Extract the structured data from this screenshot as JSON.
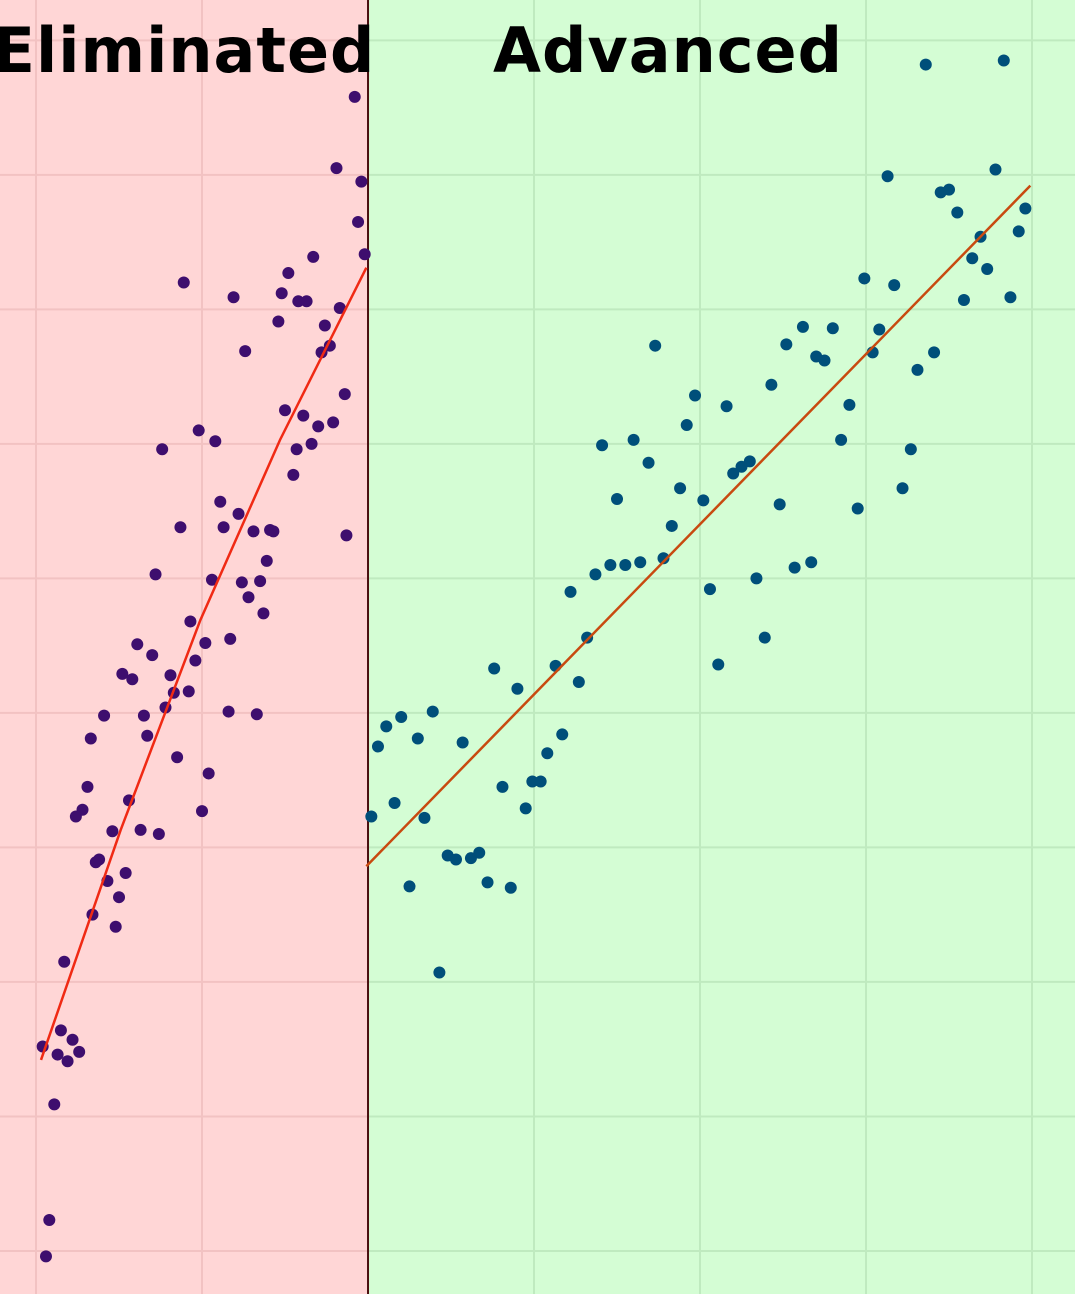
{
  "chart_data": {
    "type": "scatter",
    "xlim": [
      -0.217,
      6.259
    ],
    "ylim": [
      -0.32,
      9.3
    ],
    "xticks": [
      0,
      1,
      2,
      3,
      4,
      5,
      6
    ],
    "yticks": [
      0,
      1,
      2,
      3,
      4,
      5,
      6,
      7,
      8,
      9
    ],
    "grid": true,
    "split_x": 2,
    "divider_color": "#4a0f0f",
    "regions": [
      {
        "name": "Eliminated",
        "color": "#ffd6d6",
        "grid_color": "#f2c2c2",
        "point_color": "#3e0e6e",
        "x": [
          1.92,
          1.81,
          1.96,
          1.94,
          1.98,
          0.89,
          1.52,
          1.67,
          1.19,
          1.48,
          1.58,
          1.63,
          1.46,
          1.83,
          1.74,
          1.26,
          1.77,
          1.72,
          1.86,
          1.5,
          1.61,
          1.79,
          1.7,
          0.98,
          1.08,
          0.76,
          1.66,
          1.57,
          1.55,
          1.11,
          1.22,
          1.13,
          0.87,
          1.31,
          1.41,
          1.43,
          1.87,
          1.39,
          0.72,
          1.06,
          1.24,
          1.35,
          1.28,
          1.37,
          0.93,
          0.61,
          0.7,
          1.02,
          1.17,
          0.52,
          0.58,
          0.81,
          0.96,
          0.83,
          0.92,
          0.41,
          0.65,
          0.78,
          1.16,
          1.33,
          0.33,
          0.67,
          0.85,
          1.04,
          0.31,
          0.56,
          0.28,
          0.24,
          1.0,
          0.46,
          0.63,
          0.74,
          0.36,
          0.38,
          0.54,
          0.43,
          0.5,
          0.34,
          0.48,
          0.17,
          0.04,
          0.15,
          0.22,
          0.13,
          0.19,
          0.26,
          0.11,
          0.08,
          0.06
        ],
        "y": [
          8.58,
          8.05,
          7.95,
          7.65,
          7.41,
          7.2,
          7.27,
          7.39,
          7.09,
          7.12,
          7.06,
          7.06,
          6.91,
          7.01,
          6.88,
          6.69,
          6.73,
          6.68,
          6.37,
          6.25,
          6.21,
          6.16,
          6.13,
          6.1,
          6.02,
          5.96,
          6.0,
          5.96,
          5.77,
          5.57,
          5.48,
          5.38,
          5.38,
          5.35,
          5.36,
          5.35,
          5.32,
          5.13,
          5.03,
          4.99,
          4.97,
          4.98,
          4.86,
          4.74,
          4.68,
          4.51,
          4.43,
          4.52,
          4.55,
          4.29,
          4.25,
          4.28,
          4.39,
          4.15,
          4.16,
          3.98,
          3.98,
          4.04,
          4.01,
          3.99,
          3.81,
          3.83,
          3.67,
          3.55,
          3.45,
          3.35,
          3.28,
          3.23,
          3.27,
          3.12,
          3.13,
          3.1,
          2.89,
          2.91,
          2.81,
          2.75,
          2.63,
          2.5,
          2.41,
          2.15,
          1.52,
          1.64,
          1.57,
          1.46,
          1.41,
          1.48,
          1.09,
          0.23,
          -0.04
        ],
        "fit": {
          "color": "#f02a14",
          "x": [
            0.03,
            0.51,
            0.99,
            1.47,
            1.99
          ],
          "y": [
            1.42,
            3.13,
            4.69,
            6.03,
            7.31
          ]
        }
      },
      {
        "name": "Advanced",
        "color": "#d4fdd4",
        "grid_color": "#bfeabf",
        "point_color": "#004f7a",
        "x": [
          5.36,
          5.83,
          5.13,
          5.78,
          5.45,
          5.5,
          5.55,
          5.96,
          5.92,
          5.69,
          5.64,
          5.73,
          5.59,
          5.87,
          4.99,
          5.17,
          4.62,
          4.8,
          5.08,
          4.52,
          4.7,
          4.75,
          3.73,
          5.04,
          5.41,
          5.31,
          4.43,
          3.97,
          4.16,
          4.9,
          3.92,
          3.6,
          3.41,
          4.85,
          5.27,
          3.69,
          4.3,
          4.25,
          4.2,
          3.88,
          5.22,
          3.5,
          4.02,
          4.48,
          4.95,
          3.83,
          3.78,
          3.37,
          3.46,
          3.55,
          3.64,
          4.67,
          4.57,
          4.34,
          3.22,
          4.06,
          4.39,
          3.32,
          3.13,
          4.11,
          2.76,
          3.27,
          2.9,
          2.39,
          2.2,
          2.11,
          2.3,
          2.06,
          3.17,
          2.57,
          3.08,
          2.99,
          3.04,
          2.81,
          2.16,
          2.95,
          2.02,
          2.34,
          2.48,
          2.53,
          2.62,
          2.67,
          2.72,
          2.86,
          2.25,
          2.43
        ],
        "y": [
          8.82,
          8.85,
          7.99,
          8.04,
          7.87,
          7.89,
          7.72,
          7.75,
          7.58,
          7.54,
          7.38,
          7.3,
          7.07,
          7.09,
          7.23,
          7.18,
          6.87,
          6.86,
          6.85,
          6.74,
          6.65,
          6.62,
          6.73,
          6.68,
          6.68,
          6.55,
          6.44,
          6.36,
          6.28,
          6.29,
          6.14,
          6.03,
          5.99,
          6.03,
          5.96,
          5.86,
          5.87,
          5.83,
          5.78,
          5.67,
          5.67,
          5.59,
          5.58,
          5.55,
          5.52,
          5.39,
          5.15,
          5.03,
          5.1,
          5.1,
          5.12,
          5.12,
          5.08,
          5.0,
          4.9,
          4.92,
          4.56,
          4.56,
          4.35,
          4.36,
          4.33,
          4.23,
          4.18,
          4.01,
          3.97,
          3.9,
          3.81,
          3.75,
          3.84,
          3.78,
          3.7,
          3.49,
          3.49,
          3.45,
          3.33,
          3.29,
          3.23,
          3.22,
          2.94,
          2.91,
          2.92,
          2.96,
          2.74,
          2.7,
          2.71,
          2.07
        ],
        "fit": {
          "color": "#c84a10",
          "x": [
            1.99,
            5.99
          ],
          "y": [
            2.86,
            7.92
          ]
        }
      }
    ]
  }
}
